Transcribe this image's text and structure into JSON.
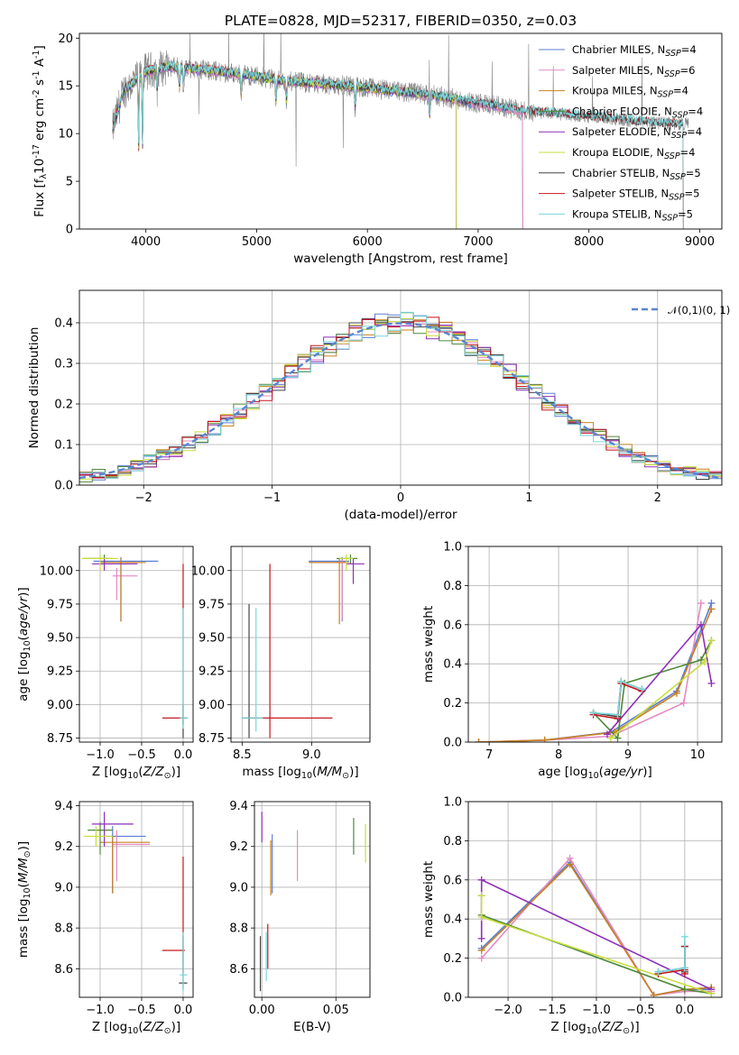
{
  "colors": [
    "#5b7fd6",
    "#e48ac4",
    "#c8801f",
    "#4f8a3a",
    "#8e2fb8",
    "#c9dd3c",
    "#444444",
    "#c4161c",
    "#7ad6d9"
  ],
  "chart_data": [
    {
      "id": "spectrum",
      "type": "line",
      "title": "PLATE=0828, MJD=52317, FIBERID=0350, z=0.03",
      "xlabel": "wavelength [Angstrom, rest frame]",
      "ylabel": "Flux [f$_\\lambda$10$^{-17}$ erg cm$^{-2}$ s$^{-1}$ A$^{-1}$]",
      "xlim": [
        3400,
        9200
      ],
      "ylim": [
        0,
        20.5
      ],
      "xticks": [
        4000,
        5000,
        6000,
        7000,
        8000,
        9000
      ],
      "yticks": [
        0,
        5,
        10,
        15,
        20
      ],
      "grid": false,
      "legend": "upper right",
      "series": [
        {
          "name": "Chabrier MILES, N_SSP=4"
        },
        {
          "name": "Salpeter MILES, N_SSP=6"
        },
        {
          "name": "Kroupa MILES, N_SSP=4"
        },
        {
          "name": "Chabrier ELODIE, N_SSP=4"
        },
        {
          "name": "Salpeter ELODIE, N_SSP=4"
        },
        {
          "name": "Kroupa ELODIE, N_SSP=4"
        },
        {
          "name": "Chabrier STELIB, N_SSP=5"
        },
        {
          "name": "Salpeter STELIB, N_SSP=5"
        },
        {
          "name": "Kroupa STELIB, N_SSP=5"
        }
      ],
      "continuum": {
        "x": [
          3700,
          3800,
          3900,
          4000,
          4200,
          4400,
          4600,
          4800,
          5000,
          5200,
          5400,
          5600,
          5800,
          6000,
          6200,
          6400,
          6600,
          6800,
          7000,
          7200,
          7400,
          7600,
          7800,
          8000,
          8200,
          8400,
          8600,
          8800,
          9000
        ],
        "y": [
          10.5,
          14.5,
          15.5,
          16.5,
          17.0,
          16.8,
          16.6,
          16.3,
          16.0,
          15.6,
          15.4,
          15.2,
          15.0,
          14.8,
          14.5,
          14.3,
          14.0,
          13.6,
          13.2,
          12.8,
          12.4,
          12.2,
          12.0,
          11.8,
          11.6,
          11.3,
          11.1,
          11.0,
          11.2
        ]
      },
      "absorption_lines": [
        3934,
        3969,
        4102,
        4304,
        4340,
        4861,
        5175,
        5270,
        5890,
        6563
      ],
      "model_cutoffs": {
        "ELODIE": 6800,
        "MILES": 7400,
        "STELIB": 8850
      }
    },
    {
      "id": "residuals",
      "type": "histogram",
      "xlabel": "(data-model)/error",
      "ylabel": "Normed distribution",
      "xlim": [
        -2.5,
        2.5
      ],
      "ylim": [
        0,
        0.48
      ],
      "xticks": [
        -2,
        -1,
        0,
        1,
        2
      ],
      "yticks": [
        0.0,
        0.1,
        0.2,
        0.3,
        0.4
      ],
      "grid": true,
      "reference": {
        "name": "$\\mathcal{N}(0,1)$",
        "mean": 0,
        "sigma": 1
      },
      "legend": "upper right",
      "bins": 50
    },
    {
      "id": "age_vs_Z",
      "type": "errorbar",
      "xlabel": "Z [log$_{10}$($Z/Z_\\odot$)]",
      "ylabel": "age  [log$_{10}$($age/yr$)]",
      "xlim": [
        -1.25,
        0.12
      ],
      "ylim": [
        8.72,
        10.18
      ],
      "xticks": [
        -1.0,
        -0.5,
        0.0
      ],
      "yticks": [
        8.75,
        9.0,
        9.25,
        9.5,
        9.75,
        10.0
      ],
      "grid": true,
      "points": [
        {
          "s": 0,
          "x": -0.75,
          "y": 10.07,
          "xe": [
            -1.08,
            -0.3
          ],
          "ye": [
            9.62,
            10.1
          ]
        },
        {
          "s": 1,
          "x": -0.8,
          "y": 9.96,
          "xe": [
            -0.85,
            -0.55
          ],
          "ye": [
            9.78,
            10.02
          ]
        },
        {
          "s": 2,
          "x": -0.75,
          "y": 10.06,
          "xe": [
            -1.0,
            -0.45
          ],
          "ye": [
            9.62,
            10.09
          ]
        },
        {
          "s": 3,
          "x": -0.95,
          "y": 10.09,
          "xe": [
            -1.2,
            -0.85
          ],
          "ye": [
            10.05,
            10.12
          ]
        },
        {
          "s": 4,
          "x": -0.95,
          "y": 10.05,
          "xe": [
            -1.1,
            -0.55
          ],
          "ye": [
            10.0,
            10.09
          ]
        },
        {
          "s": 5,
          "x": -1.0,
          "y": 10.09,
          "xe": [
            -1.22,
            -0.78
          ],
          "ye": [
            10.0,
            10.12
          ]
        },
        {
          "s": 6,
          "x": 0.0,
          "y": 8.9,
          "xe": [
            -0.03,
            0.05
          ],
          "ye": [
            8.75,
            9.0
          ]
        },
        {
          "s": 7,
          "x": 0.0,
          "y": 8.9,
          "xe": [
            -0.25,
            0.02
          ],
          "ye": [
            8.85,
            10.05
          ]
        },
        {
          "s": 8,
          "x": 0.0,
          "y": 8.9,
          "xe": [
            -0.04,
            0.06
          ],
          "ye": [
            8.82,
            9.72
          ]
        }
      ]
    },
    {
      "id": "age_vs_mass",
      "type": "errorbar",
      "xlabel": "mass [log$_{10}$($M/M_\\odot$)]",
      "ylabel": "",
      "xlim": [
        8.42,
        9.42
      ],
      "ylim": [
        8.72,
        10.18
      ],
      "xticks": [
        8.5,
        9.0
      ],
      "yticks": [
        8.75,
        9.0,
        9.25,
        9.5,
        9.75,
        10.0
      ],
      "grid": true,
      "points": [
        {
          "s": 0,
          "x": 9.22,
          "y": 10.07,
          "xe": [
            8.98,
            9.27
          ],
          "ye": [
            9.62,
            10.1
          ]
        },
        {
          "s": 1,
          "x": 9.22,
          "y": 10.06,
          "xe": [
            8.98,
            9.27
          ],
          "ye": [
            9.63,
            10.08
          ]
        },
        {
          "s": 2,
          "x": 9.2,
          "y": 10.06,
          "xe": [
            8.98,
            9.25
          ],
          "ye": [
            9.6,
            10.09
          ]
        },
        {
          "s": 3,
          "x": 9.28,
          "y": 10.09,
          "xe": [
            9.18,
            9.33
          ],
          "ye": [
            10.05,
            10.12
          ]
        },
        {
          "s": 4,
          "x": 9.3,
          "y": 10.05,
          "xe": [
            9.25,
            9.38
          ],
          "ye": [
            9.9,
            10.09
          ]
        },
        {
          "s": 5,
          "x": 9.25,
          "y": 10.09,
          "xe": [
            9.2,
            9.3
          ],
          "ye": [
            10.0,
            10.12
          ]
        },
        {
          "s": 6,
          "x": 8.55,
          "y": 8.9,
          "xe": [
            8.5,
            8.6
          ],
          "ye": [
            8.75,
            9.75
          ]
        },
        {
          "s": 7,
          "x": 8.7,
          "y": 8.9,
          "xe": [
            8.55,
            9.15
          ],
          "ye": [
            8.75,
            10.05
          ]
        },
        {
          "s": 8,
          "x": 8.6,
          "y": 8.9,
          "xe": [
            8.5,
            8.65
          ],
          "ye": [
            8.8,
            9.72
          ]
        }
      ]
    },
    {
      "id": "mass_weight_vs_age",
      "type": "line",
      "xlabel": "age  [log$_{10}$($age/yr$)]",
      "ylabel": "mass weight",
      "xlim": [
        6.7,
        10.35
      ],
      "ylim": [
        0,
        1.0
      ],
      "xticks": [
        7,
        8,
        9,
        10
      ],
      "yticks": [
        0.0,
        0.2,
        0.4,
        0.6,
        0.8,
        1.0
      ],
      "grid": true,
      "series": [
        {
          "s": 0,
          "x": [
            6.85,
            7.8,
            8.75,
            9.7,
            10.2
          ],
          "y": [
            0.0,
            0.01,
            0.05,
            0.26,
            0.71
          ]
        },
        {
          "s": 1,
          "x": [
            6.85,
            7.8,
            8.75,
            9.8,
            10.05
          ],
          "y": [
            0.0,
            0.01,
            0.03,
            0.2,
            0.71
          ]
        },
        {
          "s": 2,
          "x": [
            6.85,
            7.8,
            8.8,
            9.7,
            10.2
          ],
          "y": [
            0.0,
            0.01,
            0.05,
            0.25,
            0.68
          ]
        },
        {
          "s": 3,
          "x": [
            8.5,
            8.85,
            8.95,
            10.05,
            10.2
          ],
          "y": [
            0.15,
            0.02,
            0.3,
            0.42,
            0.52
          ]
        },
        {
          "s": 4,
          "x": [
            8.7,
            10.05,
            10.2
          ],
          "y": [
            0.04,
            0.6,
            0.3
          ]
        },
        {
          "s": 5,
          "x": [
            8.75,
            10.1,
            10.2
          ],
          "y": [
            0.02,
            0.41,
            0.52
          ]
        },
        {
          "s": 6,
          "x": [
            8.5,
            8.85,
            8.9,
            9.2
          ],
          "y": [
            0.15,
            0.13,
            0.31,
            0.27
          ]
        },
        {
          "s": 7,
          "x": [
            8.5,
            8.85,
            8.9,
            9.2
          ],
          "y": [
            0.14,
            0.12,
            0.3,
            0.26
          ]
        },
        {
          "s": 8,
          "x": [
            8.5,
            8.85,
            8.9,
            9.2
          ],
          "y": [
            0.15,
            0.14,
            0.31,
            0.27
          ]
        }
      ]
    },
    {
      "id": "mass_vs_Z",
      "type": "errorbar",
      "xlabel": "Z [log$_{10}$($Z/Z_\\odot$)]",
      "ylabel": "mass [log$_{10}$($M/M_\\odot$)]",
      "xlim": [
        -1.25,
        0.12
      ],
      "ylim": [
        8.46,
        9.42
      ],
      "xticks": [
        -1.0,
        -0.5,
        0.0
      ],
      "yticks": [
        8.6,
        8.8,
        9.0,
        9.2,
        9.4
      ],
      "grid": true,
      "points": [
        {
          "s": 0,
          "x": -0.85,
          "y": 9.25,
          "xe": [
            -1.0,
            -0.45
          ],
          "ye": [
            8.97,
            9.3
          ]
        },
        {
          "s": 1,
          "x": -0.8,
          "y": 9.21,
          "xe": [
            -0.85,
            -0.4
          ],
          "ye": [
            9.03,
            9.28
          ]
        },
        {
          "s": 2,
          "x": -0.85,
          "y": 9.22,
          "xe": [
            -1.0,
            -0.4
          ],
          "ye": [
            8.97,
            9.25
          ]
        },
        {
          "s": 3,
          "x": -1.0,
          "y": 9.28,
          "xe": [
            -1.15,
            -0.85
          ],
          "ye": [
            9.16,
            9.32
          ]
        },
        {
          "s": 4,
          "x": -0.95,
          "y": 9.31,
          "xe": [
            -1.1,
            -0.6
          ],
          "ye": [
            9.2,
            9.37
          ]
        },
        {
          "s": 5,
          "x": -1.05,
          "y": 9.25,
          "xe": [
            -1.2,
            -0.85
          ],
          "ye": [
            9.2,
            9.3
          ]
        },
        {
          "s": 6,
          "x": 0.0,
          "y": 8.53,
          "xe": [
            -0.05,
            0.05
          ],
          "ye": [
            8.5,
            8.76
          ]
        },
        {
          "s": 7,
          "x": 0.0,
          "y": 8.69,
          "xe": [
            -0.25,
            0.02
          ],
          "ye": [
            8.58,
            9.15
          ]
        },
        {
          "s": 8,
          "x": 0.0,
          "y": 8.57,
          "xe": [
            -0.04,
            0.05
          ],
          "ye": [
            8.49,
            8.78
          ]
        }
      ]
    },
    {
      "id": "mass_vs_EBV",
      "type": "errorbar",
      "xlabel": "E(B-V)",
      "ylabel": "",
      "xlim": [
        -0.005,
        0.073
      ],
      "ylim": [
        8.46,
        9.42
      ],
      "xticks": [
        0.0,
        0.05
      ],
      "yticks": [
        8.6,
        8.8,
        9.0,
        9.2,
        9.4
      ],
      "grid": true,
      "points": [
        {
          "s": 0,
          "x": 0.007,
          "y": 9.16,
          "ye": [
            8.97,
            9.26
          ]
        },
        {
          "s": 1,
          "x": 0.024,
          "y": 9.16,
          "ye": [
            9.03,
            9.28
          ]
        },
        {
          "s": 2,
          "x": 0.006,
          "y": 9.1,
          "ye": [
            8.96,
            9.23
          ]
        },
        {
          "s": 3,
          "x": 0.062,
          "y": 9.25,
          "ye": [
            9.16,
            9.34
          ]
        },
        {
          "s": 4,
          "x": 0.0,
          "y": 9.3,
          "ye": [
            9.22,
            9.37
          ]
        },
        {
          "s": 5,
          "x": 0.07,
          "y": 9.22,
          "ye": [
            9.12,
            9.31
          ]
        },
        {
          "s": 6,
          "x": -0.001,
          "y": 8.62,
          "ye": [
            8.49,
            8.76
          ]
        },
        {
          "s": 7,
          "x": 0.004,
          "y": 8.69,
          "ye": [
            8.6,
            8.82
          ]
        },
        {
          "s": 8,
          "x": 0.003,
          "y": 8.63,
          "ye": [
            8.54,
            8.78
          ]
        }
      ]
    },
    {
      "id": "mass_weight_vs_Z",
      "type": "line",
      "xlabel": "Z [log$_{10}$($Z/Z_\\odot$)]",
      "ylabel": "mass weight",
      "xlim": [
        -2.45,
        0.42
      ],
      "ylim": [
        0,
        1.0
      ],
      "xticks": [
        -2.0,
        -1.5,
        -1.0,
        -0.5,
        0.0
      ],
      "yticks": [
        0.0,
        0.2,
        0.4,
        0.6,
        0.8,
        1.0
      ],
      "grid": true,
      "series": [
        {
          "s": 0,
          "x": [
            -2.3,
            -1.3,
            -0.35,
            0.0,
            0.3
          ],
          "y": [
            0.25,
            0.69,
            0.01,
            0.04,
            0.04
          ]
        },
        {
          "s": 1,
          "x": [
            -2.3,
            -1.3,
            -0.35,
            0.0,
            0.3
          ],
          "y": [
            0.2,
            0.71,
            0.01,
            0.03,
            0.03
          ]
        },
        {
          "s": 2,
          "x": [
            -2.3,
            -1.3,
            -0.35,
            0.0,
            0.3
          ],
          "y": [
            0.24,
            0.68,
            0.01,
            0.04,
            0.05
          ]
        },
        {
          "s": 3,
          "x": [
            -2.3,
            -2.3,
            0.0,
            0.3
          ],
          "y": [
            0.52,
            0.42,
            0.04,
            0.02
          ]
        },
        {
          "s": 4,
          "x": [
            -2.3,
            -2.3,
            0.3
          ],
          "y": [
            0.3,
            0.6,
            0.04
          ]
        },
        {
          "s": 5,
          "x": [
            -2.3,
            -2.3,
            0.3
          ],
          "y": [
            0.52,
            0.41,
            0.02
          ]
        },
        {
          "s": 6,
          "x": [
            -0.3,
            0.0,
            0.0,
            0.0
          ],
          "y": [
            0.13,
            0.15,
            0.26,
            0.13
          ]
        },
        {
          "s": 7,
          "x": [
            -0.3,
            0.0,
            0.0,
            0.0
          ],
          "y": [
            0.12,
            0.14,
            0.26,
            0.12
          ]
        },
        {
          "s": 8,
          "x": [
            -0.3,
            0.0,
            0.0,
            0.0
          ],
          "y": [
            0.13,
            0.15,
            0.31,
            0.15
          ]
        }
      ]
    }
  ]
}
